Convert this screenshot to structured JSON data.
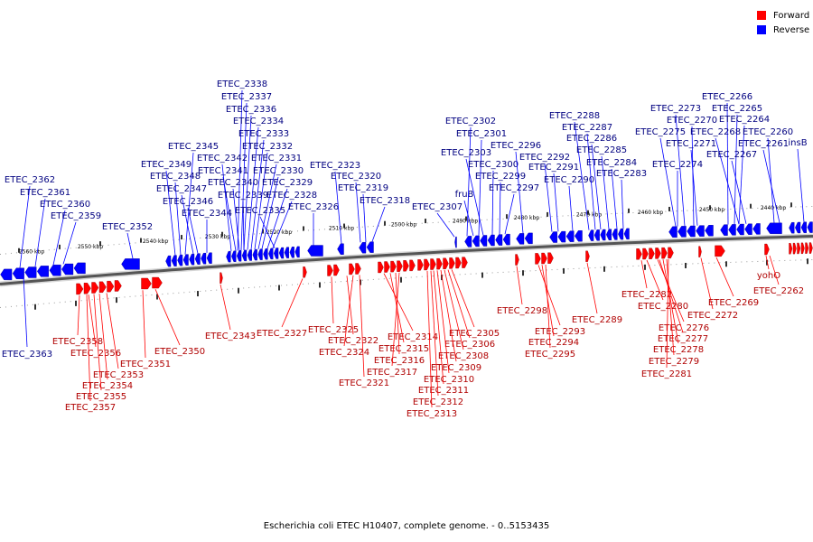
{
  "legend": {
    "forward": {
      "label": "Forward",
      "color": "#ff0000"
    },
    "reverse": {
      "label": "Reverse",
      "color": "#0000ff"
    }
  },
  "caption": "Escherichia coli ETEC H10407, complete genome. - 0..5153435",
  "scale_ticks": [
    "2560 kbp",
    "2550 kbp",
    "2540 kbp",
    "2530 kbp",
    "2520 kbp",
    "2510 kbp",
    "2500 kbp",
    "2490 kbp",
    "2480 kbp",
    "2470 kbp",
    "2460 kbp",
    "2450 kbp",
    "2440 kbp"
  ],
  "reverse_genes": [
    "ETEC_2338",
    "ETEC_2337",
    "ETEC_2336",
    "ETEC_2334",
    "ETEC_2333",
    "ETEC_2332",
    "ETEC_2345",
    "ETEC_2342",
    "ETEC_2331",
    "ETEC_2349",
    "ETEC_2341",
    "ETEC_2330",
    "ETEC_2348",
    "ETEC_2340",
    "ETEC_2329",
    "ETEC_2347",
    "ETEC_2339",
    "ETEC_2328",
    "ETEC_2346",
    "ETEC_2344",
    "ETEC_2335",
    "ETEC_2326",
    "ETEC_2362",
    "ETEC_2361",
    "ETEC_2360",
    "ETEC_2359",
    "ETEC_2352",
    "ETEC_2323",
    "ETEC_2320",
    "ETEC_2319",
    "ETEC_2318",
    "ETEC_2307",
    "fruB",
    "ETEC_2302",
    "ETEC_2301",
    "ETEC_2303",
    "ETEC_2300",
    "ETEC_2299",
    "ETEC_2297",
    "ETEC_2296",
    "ETEC_2292",
    "ETEC_2291",
    "ETEC_2290",
    "ETEC_2288",
    "ETEC_2287",
    "ETEC_2286",
    "ETEC_2285",
    "ETEC_2284",
    "ETEC_2283",
    "ETEC_2273",
    "ETEC_2275",
    "ETEC_2274",
    "ETEC_2270",
    "ETEC_2271",
    "ETEC_2266",
    "ETEC_2265",
    "ETEC_2264",
    "ETEC_2268",
    "ETEC_2267",
    "ETEC_2260",
    "ETEC_2261",
    "insB",
    "ETEC_2363"
  ],
  "forward_genes": [
    "ETEC_2358",
    "ETEC_2356",
    "ETEC_2353",
    "ETEC_2354",
    "ETEC_2355",
    "ETEC_2357",
    "ETEC_2351",
    "ETEC_2350",
    "ETEC_2343",
    "ETEC_2327",
    "ETEC_2325",
    "ETEC_2322",
    "ETEC_2324",
    "ETEC_2321",
    "ETEC_2314",
    "ETEC_2315",
    "ETEC_2316",
    "ETEC_2317",
    "ETEC_2305",
    "ETEC_2306",
    "ETEC_2308",
    "ETEC_2309",
    "ETEC_2310",
    "ETEC_2311",
    "ETEC_2312",
    "ETEC_2313",
    "ETEC_2298",
    "ETEC_2293",
    "ETEC_2294",
    "ETEC_2295",
    "ETEC_2289",
    "ETEC_2282",
    "ETEC_2280",
    "ETEC_2276",
    "ETEC_2277",
    "ETEC_2278",
    "ETEC_2279",
    "ETEC_2281",
    "ETEC_2272",
    "ETEC_2269",
    "yohO",
    "ETEC_2262"
  ]
}
